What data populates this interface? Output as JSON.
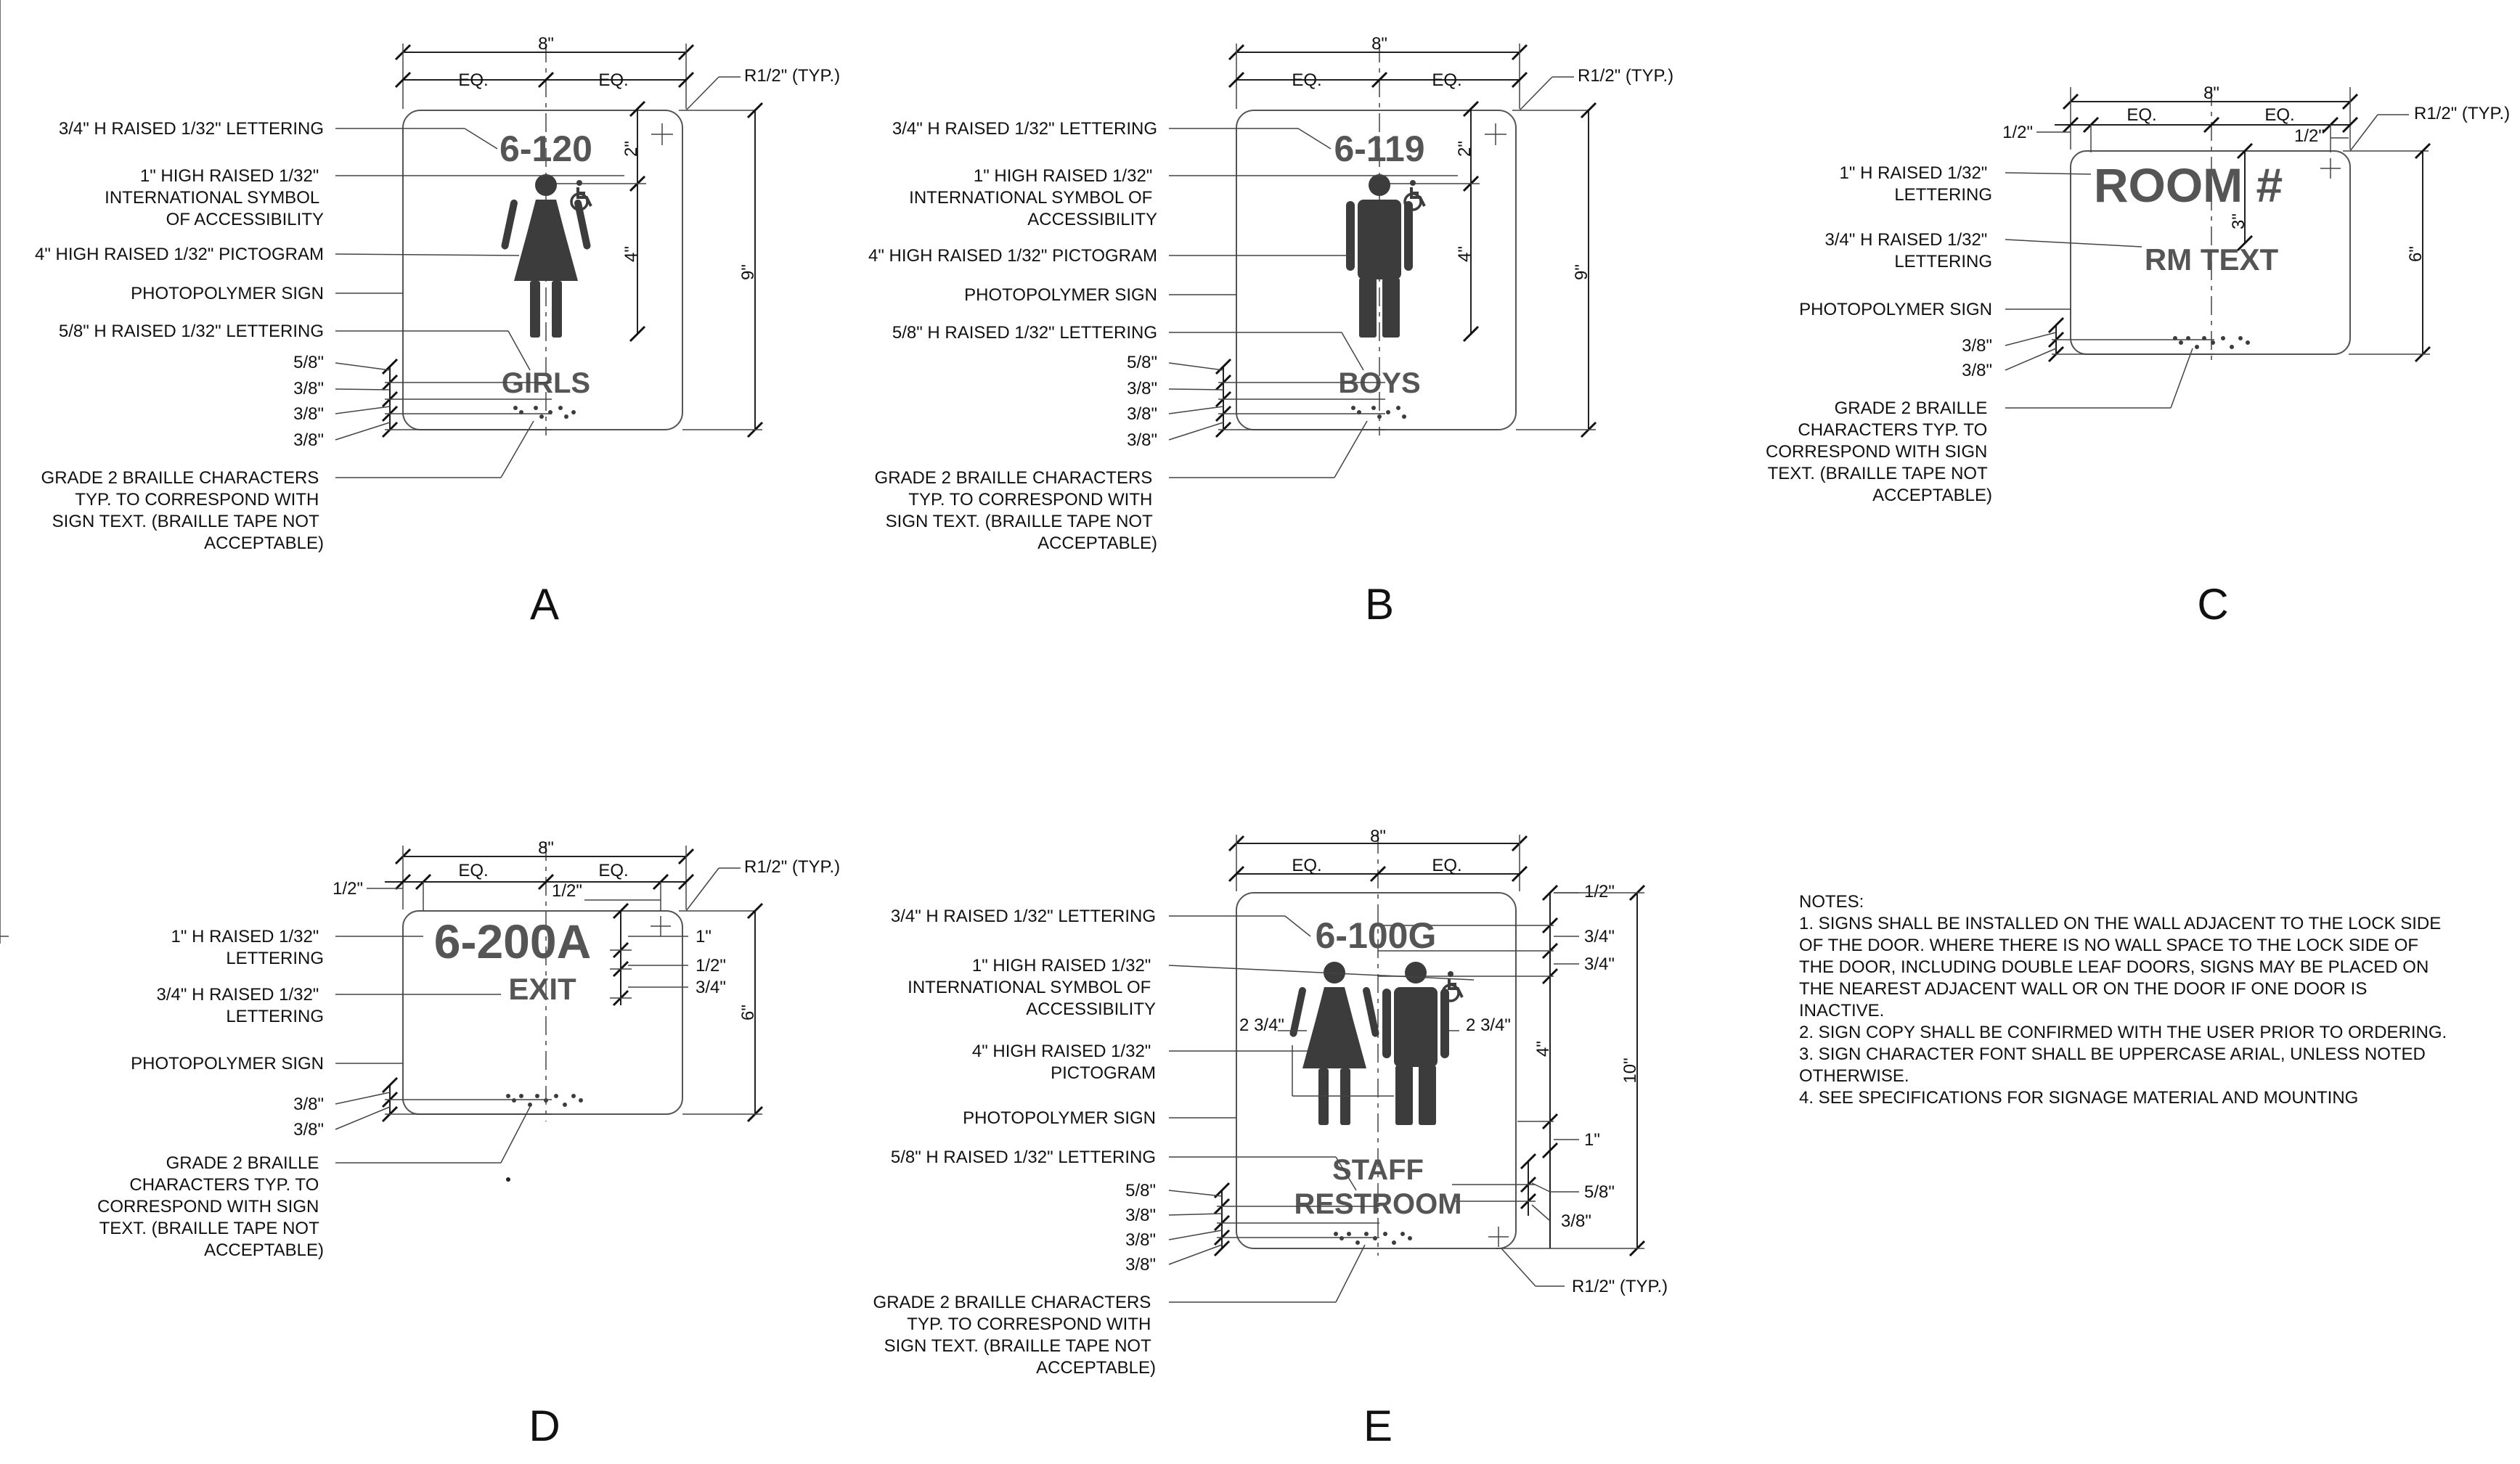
{
  "colors": {
    "sign_text": "#555555",
    "line": "#222222",
    "pictogram": "#3c3c3c"
  },
  "common": {
    "width_8": "8\"",
    "eq": "EQ.",
    "radius": "R1/2\" (TYP.)",
    "photopolymer": "PHOTOPOLYMER SIGN",
    "lbl_34_lines": [
      "3/4\" H RAISED 1/32\" LETTERING"
    ],
    "lbl_isa_lines": [
      "1\" HIGH RAISED 1/32\"",
      "INTERNATIONAL SYMBOL",
      "OF ACCESSIBILITY"
    ],
    "lbl_isa_b_lines": [
      "1\" HIGH RAISED 1/32\"",
      "INTERNATIONAL SYMBOL OF",
      "ACCESSIBILITY"
    ],
    "lbl_picto_4": "4\" HIGH RAISED 1/32\" PICTOGRAM",
    "lbl_58": "5/8\" H RAISED 1/32\" LETTERING",
    "lbl_1in_lines": [
      "1\" H RAISED 1/32\"",
      "LETTERING"
    ],
    "lbl_34b_lines": [
      "3/4\" H RAISED 1/32\"",
      "LETTERING"
    ],
    "braille_ab_lines": [
      "GRADE 2 BRAILLE CHARACTERS",
      "TYP. TO CORRESPOND WITH",
      "SIGN TEXT. (BRAILLE TAPE NOT",
      "ACCEPTABLE)"
    ],
    "braille_cd_lines": [
      "GRADE 2 BRAILLE",
      "CHARACTERS TYP. TO",
      "CORRESPOND WITH SIGN",
      "TEXT. (BRAILLE TAPE NOT",
      "ACCEPTABLE)"
    ],
    "braille_e_lines": [
      "GRADE 2 BRAILLE CHARACTERS",
      "TYP. TO CORRESPOND WITH",
      "SIGN TEXT. (BRAILLE TAPE NOT",
      "ACCEPTABLE)"
    ],
    "d_58": "5/8\"",
    "d_38": "3/8\"",
    "d_12": "1/2\"",
    "d_34": "3/4\"",
    "d_1": "1\"",
    "d_2": "2\"",
    "d_3": "3\"",
    "d_4": "4\"",
    "d_6": "6\"",
    "d_9": "9\"",
    "d_10": "10\"",
    "d_234": "2 3/4\"",
    "lbl_picto_e_lines": [
      "4\" HIGH RAISED 1/32\"",
      "PICTOGRAM"
    ]
  },
  "signs": {
    "A": {
      "letter": "A",
      "number": "6-120",
      "text": "GIRLS"
    },
    "B": {
      "letter": "B",
      "number": "6-119",
      "text": "BOYS"
    },
    "C": {
      "letter": "C",
      "number": "ROOM #",
      "text": "RM TEXT"
    },
    "D": {
      "letter": "D",
      "number": "6-200A",
      "text": "EXIT"
    },
    "E": {
      "letter": "E",
      "number": "6-100G",
      "text1": "STAFF",
      "text2": "RESTROOM"
    }
  },
  "notes": {
    "title": "NOTES:",
    "lines": [
      "1.  SIGNS SHALL BE INSTALLED ON THE WALL ADJACENT TO THE LOCK SIDE",
      "     OF THE DOOR.  WHERE THERE IS NO WALL SPACE TO THE LOCK SIDE OF",
      "     THE DOOR, INCLUDING DOUBLE LEAF DOORS, SIGNS MAY BE PLACED ON",
      "     THE NEAREST ADJACENT WALL OR ON THE DOOR IF ONE DOOR IS",
      "     INACTIVE.",
      "2.  SIGN COPY SHALL BE CONFIRMED WITH THE USER PRIOR TO ORDERING.",
      "3.  SIGN CHARACTER FONT SHALL BE UPPERCASE ARIAL, UNLESS NOTED",
      "     OTHERWISE.",
      "4.  SEE SPECIFICATIONS FOR SIGNAGE MATERIAL AND MOUNTING"
    ]
  }
}
